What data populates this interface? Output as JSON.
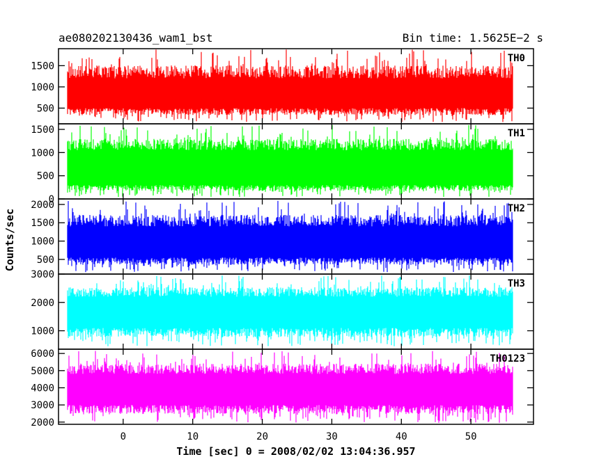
{
  "chart_data": {
    "type": "line",
    "title_left": "ae080202130436_wam1_bst",
    "title_right": "Bin time: 1.5625E−2 s",
    "xlabel": "Time [sec] 0 = 2008/02/02 13:04:36.957",
    "ylabel": "Counts/sec",
    "xlim": [
      -9.3,
      59
    ],
    "x_ticks": [
      0,
      10,
      20,
      30,
      40,
      50
    ],
    "x_tick_labels": [
      "0",
      "10",
      "20",
      "30",
      "40",
      "50"
    ],
    "x_data_range": [
      -8,
      56
    ],
    "grid": false,
    "panels": [
      {
        "name": "TH0",
        "color": "#ff0000",
        "ylim": [
          130,
          1900
        ],
        "y_ticks": [
          500,
          1000,
          1500
        ],
        "y_tick_labels": [
          "500",
          "1000",
          "1500"
        ],
        "typical_low": 500,
        "typical_high": 1200,
        "min_approx": 170,
        "max_approx": 1880
      },
      {
        "name": "TH1",
        "color": "#00ff00",
        "ylim": [
          0,
          1620
        ],
        "y_ticks": [
          0,
          500,
          1000,
          1500
        ],
        "y_tick_labels": [
          "0",
          "500",
          "1000",
          "1500"
        ],
        "typical_low": 300,
        "typical_high": 1050,
        "min_approx": 40,
        "max_approx": 1600
      },
      {
        "name": "TH2",
        "color": "#0000ff",
        "ylim": [
          100,
          2150
        ],
        "y_ticks": [
          500,
          1000,
          1500,
          2000
        ],
        "y_tick_labels": [
          "500",
          "1000",
          "1500",
          "2000"
        ],
        "typical_low": 550,
        "typical_high": 1400,
        "min_approx": 150,
        "max_approx": 2100
      },
      {
        "name": "TH3",
        "color": "#00ffff",
        "ylim": [
          350,
          3000
        ],
        "y_ticks": [
          1000,
          2000,
          3000
        ],
        "y_tick_labels": [
          "1000",
          "2000",
          "3000"
        ],
        "typical_low": 1100,
        "typical_high": 2200,
        "min_approx": 450,
        "max_approx": 2950
      },
      {
        "name": "TH0123",
        "color": "#ff00ff",
        "ylim": [
          1870,
          6250
        ],
        "y_ticks": [
          2000,
          3000,
          4000,
          5000,
          6000
        ],
        "y_tick_labels": [
          "2000",
          "3000",
          "4000",
          "5000",
          "6000"
        ],
        "typical_low": 3000,
        "typical_high": 4800,
        "min_approx": 1950,
        "max_approx": 6150
      }
    ]
  }
}
